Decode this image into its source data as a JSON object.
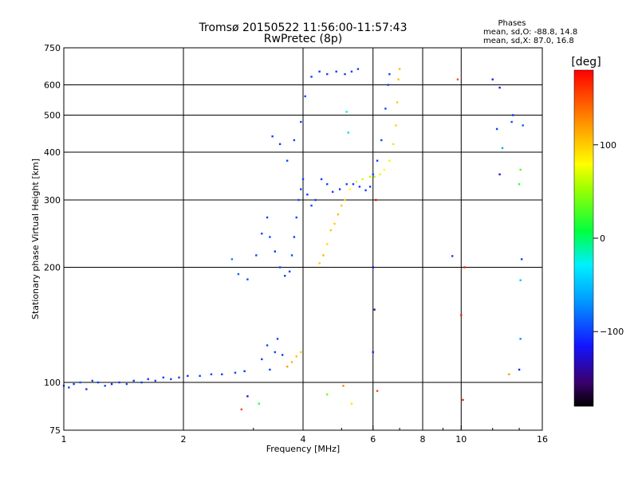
{
  "chart_data": {
    "type": "scatter",
    "title": "Tromsø 20150522 11:56:00-11:57:43",
    "subtitle": "RwPretec (8p)",
    "xlabel": "Frequency [MHz]",
    "ylabel": "Stationary phase Virtual Height [km]",
    "x_scale": "log",
    "y_scale": "log",
    "xlim": [
      1,
      16
    ],
    "ylim": [
      75,
      750
    ],
    "x_ticks": [
      1,
      2,
      4,
      6,
      8,
      10,
      16
    ],
    "x_tick_labels": [
      "1",
      "2",
      "4",
      "6",
      "8",
      "10",
      "16"
    ],
    "x_grid": [
      2,
      4,
      6,
      8,
      10
    ],
    "y_ticks": [
      75,
      100,
      200,
      300,
      400,
      500,
      600,
      750
    ],
    "y_tick_labels": [
      "75",
      "100",
      "200",
      "300",
      "400",
      "500",
      "600",
      "750"
    ],
    "y_grid": [
      100,
      200,
      300,
      400,
      500,
      600
    ],
    "grid": true,
    "stats": {
      "title": "Phases",
      "line_o": "mean, sd,O: -88.8, 14.8",
      "line_x": "mean, sd,X:  87.0, 16.8"
    },
    "colorbar": {
      "label": "[deg]",
      "range": [
        -180,
        180
      ],
      "ticks": [
        100,
        0,
        -100
      ],
      "tick_labels": [
        "100",
        "0",
        "−100"
      ]
    },
    "series": [
      {
        "mode": "O",
        "points": [
          [
            1.0,
            98,
            -95
          ],
          [
            1.03,
            97,
            -100
          ],
          [
            1.06,
            99,
            -98
          ],
          [
            1.1,
            100,
            -92
          ],
          [
            1.14,
            96,
            -105
          ],
          [
            1.18,
            101,
            -97
          ],
          [
            1.22,
            100,
            -103
          ],
          [
            1.27,
            98,
            -96
          ],
          [
            1.32,
            99,
            -110
          ],
          [
            1.38,
            100,
            -100
          ],
          [
            1.44,
            99,
            -95
          ],
          [
            1.5,
            101,
            -102
          ],
          [
            1.57,
            100,
            -99
          ],
          [
            1.63,
            102,
            -104
          ],
          [
            1.7,
            101,
            -97
          ],
          [
            1.78,
            103,
            -101
          ],
          [
            1.86,
            102,
            -100
          ],
          [
            1.95,
            103,
            -99
          ],
          [
            2.05,
            104,
            -105
          ],
          [
            2.2,
            104,
            -100
          ],
          [
            2.35,
            105,
            -98
          ],
          [
            2.5,
            105,
            -102
          ],
          [
            2.7,
            106,
            -100
          ],
          [
            2.85,
            107,
            -103
          ],
          [
            2.65,
            210,
            -75
          ],
          [
            2.75,
            192,
            -88
          ],
          [
            2.9,
            186,
            -95
          ],
          [
            3.05,
            215,
            -98
          ],
          [
            3.15,
            245,
            -100
          ],
          [
            3.25,
            270,
            -102
          ],
          [
            3.3,
            240,
            -97
          ],
          [
            3.4,
            220,
            -105
          ],
          [
            3.5,
            200,
            -99
          ],
          [
            3.6,
            190,
            -101
          ],
          [
            3.7,
            195,
            -100
          ],
          [
            3.75,
            215,
            -98
          ],
          [
            3.8,
            240,
            -103
          ],
          [
            3.85,
            270,
            -100
          ],
          [
            3.9,
            300,
            -97
          ],
          [
            3.95,
            320,
            -101
          ],
          [
            4.0,
            340,
            -100
          ],
          [
            4.1,
            310,
            -102
          ],
          [
            4.2,
            290,
            -98
          ],
          [
            4.3,
            300,
            -100
          ],
          [
            4.45,
            340,
            -101
          ],
          [
            4.6,
            330,
            -99
          ],
          [
            4.75,
            315,
            -100
          ],
          [
            4.95,
            320,
            -102
          ],
          [
            5.15,
            330,
            -98
          ],
          [
            5.35,
            330,
            -100
          ],
          [
            5.55,
            325,
            -101
          ],
          [
            5.75,
            318,
            -99
          ],
          [
            5.9,
            325,
            -100
          ],
          [
            6.0,
            350,
            -98
          ],
          [
            6.15,
            380,
            -102
          ],
          [
            6.3,
            430,
            -100
          ],
          [
            6.45,
            520,
            -97
          ],
          [
            6.55,
            600,
            -101
          ],
          [
            6.6,
            640,
            -100
          ],
          [
            3.35,
            440,
            -100
          ],
          [
            3.5,
            420,
            -102
          ],
          [
            3.65,
            380,
            -98
          ],
          [
            3.8,
            430,
            -100
          ],
          [
            3.95,
            480,
            -101
          ],
          [
            4.05,
            560,
            -99
          ],
          [
            4.2,
            630,
            -100
          ],
          [
            4.4,
            650,
            -102
          ],
          [
            4.6,
            640,
            -98
          ],
          [
            4.85,
            650,
            -100
          ],
          [
            5.1,
            640,
            -101
          ],
          [
            5.3,
            650,
            -99
          ],
          [
            5.5,
            660,
            -100
          ],
          [
            3.15,
            115,
            -100
          ],
          [
            3.25,
            125,
            -98
          ],
          [
            3.3,
            108,
            -102
          ],
          [
            3.4,
            120,
            -100
          ],
          [
            3.45,
            130,
            -99
          ],
          [
            3.55,
            118,
            -101
          ],
          [
            12.0,
            620,
            -110
          ],
          [
            12.5,
            590,
            -120
          ],
          [
            13.5,
            500,
            -105
          ],
          [
            13.4,
            480,
            -95
          ],
          [
            12.3,
            460,
            -100
          ],
          [
            14.3,
            470,
            -90
          ],
          [
            14.0,
            108,
            -110
          ]
        ]
      },
      {
        "mode": "X",
        "points": [
          [
            3.65,
            110,
            120
          ],
          [
            3.75,
            113,
            110
          ],
          [
            3.85,
            117,
            105
          ],
          [
            3.95,
            120,
            100
          ],
          [
            4.4,
            205,
            100
          ],
          [
            4.5,
            215,
            110
          ],
          [
            4.6,
            230,
            95
          ],
          [
            4.7,
            250,
            105
          ],
          [
            4.8,
            260,
            100
          ],
          [
            4.9,
            275,
            108
          ],
          [
            5.0,
            290,
            102
          ],
          [
            5.1,
            300,
            97
          ],
          [
            5.25,
            320,
            80
          ],
          [
            5.45,
            335,
            70
          ],
          [
            5.65,
            340,
            65
          ],
          [
            5.9,
            345,
            60
          ],
          [
            6.05,
            345,
            55
          ],
          [
            6.25,
            350,
            70
          ],
          [
            6.4,
            360,
            78
          ],
          [
            6.6,
            380,
            85
          ],
          [
            6.75,
            420,
            92
          ],
          [
            6.85,
            470,
            98
          ],
          [
            6.9,
            540,
            100
          ],
          [
            6.95,
            620,
            104
          ],
          [
            7.0,
            660,
            106
          ]
        ]
      },
      {
        "mode": "scattered",
        "points": [
          [
            5.15,
            510,
            -30
          ],
          [
            5.2,
            450,
            -40
          ],
          [
            5.05,
            98,
            130
          ],
          [
            5.3,
            88,
            90
          ],
          [
            4.6,
            93,
            40
          ],
          [
            3.1,
            88,
            20
          ],
          [
            2.9,
            92,
            -120
          ],
          [
            2.8,
            85,
            150
          ],
          [
            6.1,
            300,
            180
          ],
          [
            6.0,
            200,
            -120
          ],
          [
            6.05,
            155,
            -140
          ],
          [
            6.0,
            120,
            -110
          ],
          [
            6.15,
            95,
            150
          ],
          [
            9.5,
            214,
            -100
          ],
          [
            10.0,
            150,
            170
          ],
          [
            10.2,
            200,
            170
          ],
          [
            10.1,
            90,
            170
          ],
          [
            9.8,
            620,
            150
          ],
          [
            13.2,
            105,
            120
          ],
          [
            14.2,
            210,
            -100
          ],
          [
            14.1,
            185,
            -50
          ],
          [
            14.1,
            130,
            -70
          ],
          [
            14.0,
            330,
            20
          ],
          [
            14.1,
            360,
            30
          ],
          [
            12.7,
            410,
            -60
          ],
          [
            12.5,
            350,
            -120
          ]
        ]
      }
    ]
  }
}
